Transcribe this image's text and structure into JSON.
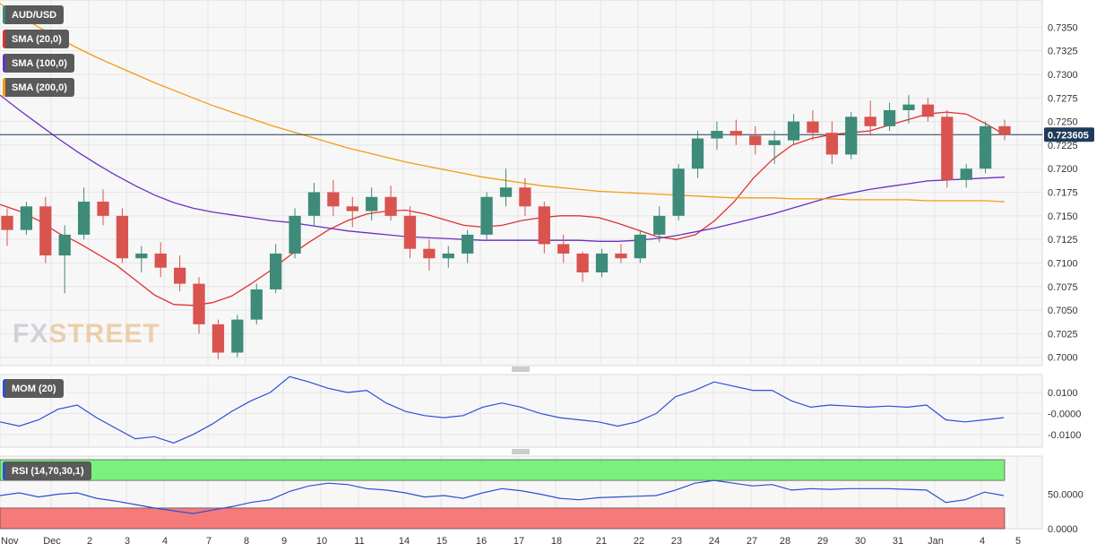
{
  "brand": {
    "left": "FX",
    "right": "STREET"
  },
  "legends": {
    "symbol": "AUD/USD",
    "sma20": "SMA (20,0)",
    "sma100": "SMA (100,0)",
    "sma200": "SMA (200,0)",
    "mom": "MOM (20)",
    "rsi": "RSI (14,70,30,1)"
  },
  "colors": {
    "up_candle": "#3d8b78",
    "down_candle": "#d9534f",
    "sma20": "#e03030",
    "sma100": "#6a2fc4",
    "sma200": "#f39c12",
    "mom_line": "#2c4fd6",
    "rsi_line": "#2c4fd6",
    "rsi_overbought_fill": "#7cf07c",
    "rsi_oversold_fill": "#f57a7a",
    "current_price_line": "#1f3a5a",
    "label_bg": "#5a5a5a"
  },
  "chart_data": {
    "type": "candlestick",
    "title": "AUD/USD",
    "current_price": 0.723605,
    "current_price_label": "0.723605",
    "ylim": [
      0.6995,
      0.7375
    ],
    "yticks": [
      "0.7350",
      "0.7325",
      "0.7300",
      "0.7275",
      "0.7250",
      "0.7225",
      "0.7200",
      "0.7175",
      "0.7150",
      "0.7125",
      "0.7100",
      "0.7075",
      "0.7050",
      "0.7025",
      "0.7000"
    ],
    "xticks": [
      "Nov",
      "Dec",
      "2",
      "3",
      "4",
      "7",
      "8",
      "9",
      "10",
      "11",
      "14",
      "15",
      "16",
      "17",
      "18",
      "21",
      "22",
      "23",
      "24",
      "27",
      "28",
      "29",
      "30",
      "31",
      "Jan",
      "4",
      "5"
    ],
    "candles": [
      [
        0.715,
        0.7158,
        0.7118,
        0.7135
      ],
      [
        0.7135,
        0.7165,
        0.713,
        0.716
      ],
      [
        0.716,
        0.717,
        0.71,
        0.7108
      ],
      [
        0.7108,
        0.714,
        0.7068,
        0.713
      ],
      [
        0.713,
        0.718,
        0.7125,
        0.7165
      ],
      [
        0.7165,
        0.7178,
        0.714,
        0.715
      ],
      [
        0.715,
        0.7158,
        0.71,
        0.7105
      ],
      [
        0.7105,
        0.7118,
        0.709,
        0.711
      ],
      [
        0.711,
        0.7122,
        0.7085,
        0.7095
      ],
      [
        0.7095,
        0.7108,
        0.707,
        0.7078
      ],
      [
        0.7078,
        0.7085,
        0.7025,
        0.7035
      ],
      [
        0.7035,
        0.704,
        0.6998,
        0.7005
      ],
      [
        0.7005,
        0.7045,
        0.7,
        0.704
      ],
      [
        0.704,
        0.7078,
        0.7035,
        0.7072
      ],
      [
        0.7072,
        0.712,
        0.7068,
        0.711
      ],
      [
        0.711,
        0.7158,
        0.7105,
        0.715
      ],
      [
        0.715,
        0.7185,
        0.714,
        0.7175
      ],
      [
        0.7175,
        0.7188,
        0.715,
        0.716
      ],
      [
        0.716,
        0.717,
        0.7138,
        0.7155
      ],
      [
        0.7155,
        0.718,
        0.7145,
        0.717
      ],
      [
        0.717,
        0.7182,
        0.7145,
        0.715
      ],
      [
        0.715,
        0.716,
        0.7105,
        0.7115
      ],
      [
        0.7115,
        0.7125,
        0.7092,
        0.7105
      ],
      [
        0.7105,
        0.7118,
        0.7095,
        0.711
      ],
      [
        0.711,
        0.7135,
        0.71,
        0.713
      ],
      [
        0.713,
        0.7175,
        0.7125,
        0.717
      ],
      [
        0.717,
        0.72,
        0.716,
        0.718
      ],
      [
        0.718,
        0.719,
        0.715,
        0.716
      ],
      [
        0.716,
        0.7165,
        0.711,
        0.712
      ],
      [
        0.712,
        0.713,
        0.71,
        0.711
      ],
      [
        0.711,
        0.7112,
        0.708,
        0.709
      ],
      [
        0.709,
        0.7115,
        0.7085,
        0.711
      ],
      [
        0.711,
        0.712,
        0.71,
        0.7105
      ],
      [
        0.7105,
        0.7135,
        0.71,
        0.713
      ],
      [
        0.713,
        0.716,
        0.7122,
        0.715
      ],
      [
        0.715,
        0.7205,
        0.7145,
        0.72
      ],
      [
        0.72,
        0.724,
        0.719,
        0.7232
      ],
      [
        0.7232,
        0.725,
        0.722,
        0.724
      ],
      [
        0.724,
        0.7252,
        0.7225,
        0.7235
      ],
      [
        0.7235,
        0.7245,
        0.7215,
        0.7225
      ],
      [
        0.7225,
        0.724,
        0.7205,
        0.723
      ],
      [
        0.723,
        0.7258,
        0.7225,
        0.725
      ],
      [
        0.725,
        0.7262,
        0.723,
        0.7238
      ],
      [
        0.7238,
        0.725,
        0.7205,
        0.7215
      ],
      [
        0.7215,
        0.726,
        0.721,
        0.7255
      ],
      [
        0.7255,
        0.7272,
        0.7235,
        0.7245
      ],
      [
        0.7245,
        0.727,
        0.724,
        0.7262
      ],
      [
        0.7262,
        0.7278,
        0.7248,
        0.7268
      ],
      [
        0.7268,
        0.7275,
        0.725,
        0.7255
      ],
      [
        0.7255,
        0.7262,
        0.718,
        0.7188
      ],
      [
        0.7188,
        0.7205,
        0.718,
        0.72
      ],
      [
        0.72,
        0.725,
        0.7195,
        0.7245
      ],
      [
        0.7245,
        0.7252,
        0.723,
        0.7236
      ]
    ],
    "series": [
      {
        "name": "SMA (20,0)",
        "values": [
          0.7162,
          0.7155,
          0.7145,
          0.7132,
          0.7122,
          0.711,
          0.7098,
          0.7082,
          0.7066,
          0.7056,
          0.7055,
          0.7058,
          0.7065,
          0.7078,
          0.7092,
          0.7108,
          0.7122,
          0.7135,
          0.7145,
          0.7152,
          0.7155,
          0.7156,
          0.7152,
          0.7146,
          0.714,
          0.7138,
          0.714,
          0.7145,
          0.7148,
          0.715,
          0.715,
          0.7148,
          0.7142,
          0.7135,
          0.7128,
          0.7125,
          0.713,
          0.7145,
          0.7165,
          0.719,
          0.721,
          0.7225,
          0.7232,
          0.7236,
          0.7238,
          0.724,
          0.7246,
          0.7252,
          0.7258,
          0.726,
          0.7258,
          0.7248,
          0.7236
        ]
      },
      {
        "name": "SMA (100,0)",
        "values": [
          0.7278,
          0.7262,
          0.7247,
          0.7232,
          0.7218,
          0.7205,
          0.7193,
          0.7182,
          0.7172,
          0.7164,
          0.7158,
          0.7154,
          0.7151,
          0.7148,
          0.7145,
          0.7143,
          0.714,
          0.7137,
          0.7134,
          0.7132,
          0.713,
          0.7128,
          0.7127,
          0.7126,
          0.7125,
          0.7124,
          0.7124,
          0.7124,
          0.7124,
          0.7124,
          0.7124,
          0.7123,
          0.7123,
          0.7124,
          0.7126,
          0.7129,
          0.7133,
          0.7137,
          0.7142,
          0.7147,
          0.7152,
          0.7158,
          0.7164,
          0.717,
          0.7174,
          0.7178,
          0.7181,
          0.7184,
          0.7187,
          0.7188,
          0.7189,
          0.719,
          0.7191
        ]
      },
      {
        "name": "SMA (200,0)",
        "values": [
          0.7375,
          0.7362,
          0.735,
          0.7339,
          0.7328,
          0.7318,
          0.7309,
          0.73,
          0.7291,
          0.7283,
          0.7275,
          0.7267,
          0.726,
          0.7253,
          0.7246,
          0.724,
          0.7234,
          0.7228,
          0.7222,
          0.7217,
          0.7212,
          0.7207,
          0.7203,
          0.7199,
          0.7195,
          0.7191,
          0.7188,
          0.7185,
          0.7182,
          0.718,
          0.7178,
          0.7176,
          0.7175,
          0.7174,
          0.7173,
          0.7172,
          0.7171,
          0.717,
          0.7169,
          0.7169,
          0.7169,
          0.7168,
          0.7168,
          0.7168,
          0.7167,
          0.7167,
          0.7167,
          0.7167,
          0.7166,
          0.7166,
          0.7166,
          0.7166,
          0.7165
        ]
      }
    ],
    "mom": {
      "name": "MOM (20)",
      "yticks": [
        "0.0100",
        "-0.0000",
        "-0.0100"
      ],
      "ylim": [
        -0.016,
        0.0185
      ],
      "values": [
        -0.004,
        -0.006,
        -0.003,
        0.002,
        0.004,
        -0.002,
        -0.007,
        -0.012,
        -0.011,
        -0.014,
        -0.01,
        -0.005,
        0.001,
        0.006,
        0.01,
        0.0175,
        0.015,
        0.012,
        0.01,
        0.011,
        0.005,
        0.001,
        -0.001,
        -0.002,
        -0.001,
        0.003,
        0.005,
        0.003,
        0.0,
        -0.002,
        -0.003,
        -0.004,
        -0.006,
        -0.004,
        0.0,
        0.008,
        0.011,
        0.015,
        0.013,
        0.011,
        0.011,
        0.006,
        0.003,
        0.004,
        0.0035,
        0.003,
        0.0035,
        0.003,
        0.004,
        -0.003,
        -0.004,
        -0.003,
        -0.002
      ]
    },
    "rsi": {
      "name": "RSI (14,70,30,1)",
      "yticks": [
        "50.0000",
        "0.0000"
      ],
      "ylim": [
        0,
        100
      ],
      "overbought": 70,
      "oversold": 30,
      "values": [
        48,
        52,
        46,
        50,
        52,
        44,
        40,
        35,
        30,
        26,
        22,
        27,
        32,
        38,
        42,
        54,
        62,
        66,
        64,
        58,
        56,
        52,
        46,
        48,
        44,
        52,
        58,
        55,
        50,
        44,
        42,
        45,
        46,
        47,
        48,
        56,
        66,
        70,
        66,
        62,
        64,
        56,
        58,
        57,
        58,
        58,
        58,
        57,
        56,
        38,
        42,
        53,
        48
      ]
    }
  }
}
